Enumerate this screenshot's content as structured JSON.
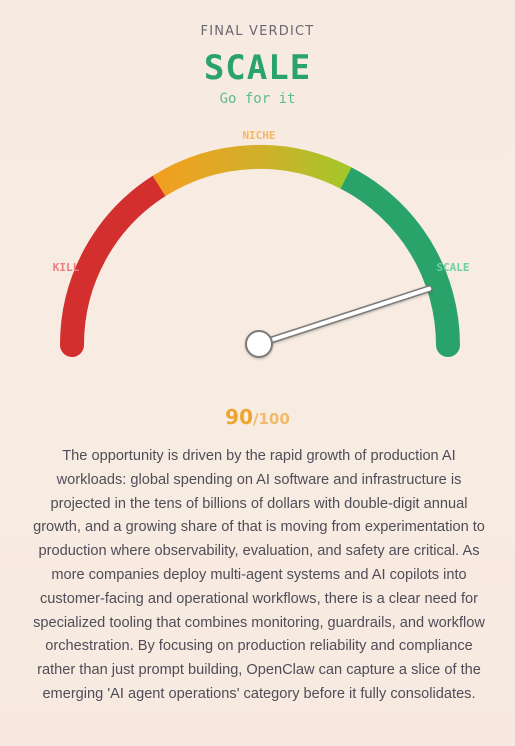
{
  "verdict": {
    "label": "FINAL VERDICT",
    "title": "SCALE",
    "subtitle": "Go for it"
  },
  "gauge": {
    "labels": {
      "kill": "KILL",
      "niche": "NICHE",
      "scale": "SCALE"
    },
    "value": 90,
    "max": 100,
    "colors": {
      "kill": "#d32f2f",
      "niche_start": "#f0a020",
      "niche_end": "#a6c62a",
      "scale": "#2aa36b",
      "kill_label": "#e77f83",
      "niche_label": "#f2b765",
      "scale_label": "#6fd1a2"
    }
  },
  "score": {
    "value": "90",
    "suffix": "/100"
  },
  "rationale": "The opportunity is driven by the rapid growth of production AI workloads: global spending on AI software and infrastructure is projected in the tens of billions of dollars with double-digit annual growth, and a growing share of that is moving from experimentation to production where observability, evaluation, and safety are critical. As more companies deploy multi-agent systems and AI copilots into customer-facing and operational workflows, there is a clear need for specialized tooling that combines monitoring, guardrails, and workflow orchestration. By focusing on production reliability and compliance rather than just prompt building, OpenClaw can capture a slice of the emerging 'AI agent operations' category before it fully consolidates."
}
